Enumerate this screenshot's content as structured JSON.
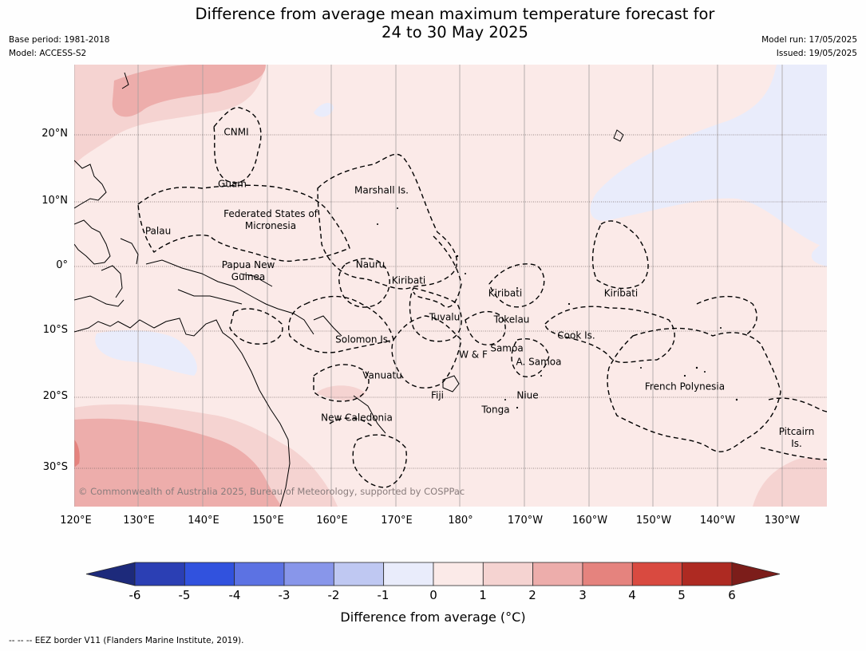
{
  "title_line1": "Difference from average mean maximum temperature forecast for",
  "title_line2": "24 to 30 May 2025",
  "meta": {
    "base_period": "Base period: 1981-2018",
    "model": "Model: ACCESS-S2",
    "model_run": "Model run: 17/05/2025",
    "issued": "Issued: 19/05/2025"
  },
  "axes": {
    "lat_labels": [
      "20°N",
      "10°N",
      "0°",
      "10°S",
      "20°S",
      "30°S"
    ],
    "lon_labels": [
      "120°E",
      "130°E",
      "140°E",
      "150°E",
      "160°E",
      "170°E",
      "180°",
      "170°W",
      "160°W",
      "150°W",
      "140°W",
      "130°W"
    ]
  },
  "regions": [
    "CNMI",
    "Guam",
    "Marshall Is.",
    "Federated States of Micronesia",
    "Palau",
    "Papua New Guinea",
    "Nauru",
    "Kiribati",
    "Kiribati",
    "Kiribati",
    "Tuvalu",
    "Tokelau",
    "Cook Is.",
    "Solomon Is.",
    "W & F",
    "Samoa",
    "A. Samoa",
    "Vanuatu",
    "Fiji",
    "Niue",
    "French Polynesia",
    "Tonga",
    "New Caledonia",
    "Pitcairn Is."
  ],
  "copyright": "© Commonwealth of Australia 2025, Bureau of Meteorology, supported by COSPPac",
  "colorbar": {
    "ticks": [
      "-6",
      "-5",
      "-4",
      "-3",
      "-2",
      "-1",
      "0",
      "1",
      "2",
      "3",
      "4",
      "5",
      "6"
    ],
    "colors": [
      "#1d2a7b",
      "#2b3fb4",
      "#3152de",
      "#5c72e3",
      "#8896ea",
      "#bfc8f2",
      "#e9ecfb",
      "#fbeae8",
      "#f5d3d1",
      "#edadab",
      "#e5837e",
      "#d94a40",
      "#ae2a22",
      "#7c1d1a"
    ],
    "label": "Difference from average (°C)"
  },
  "footer": "--  --  -- EEZ border V11 (Flanders Marine Institute, 2019)."
}
